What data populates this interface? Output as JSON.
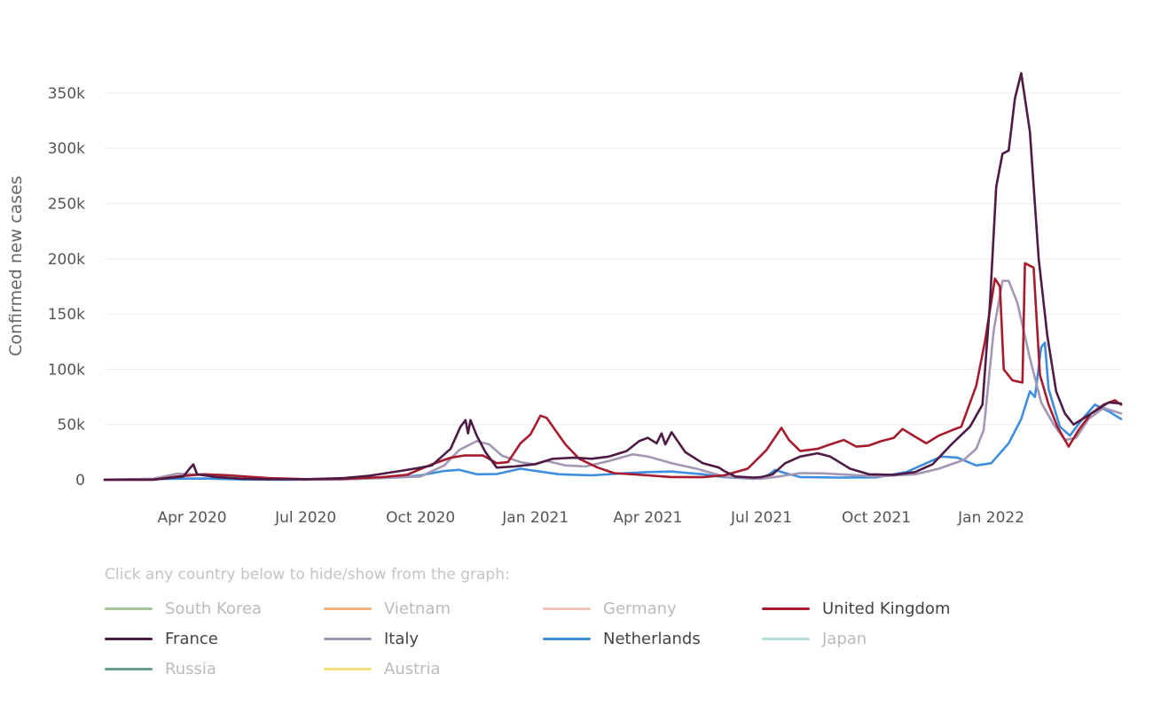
{
  "chart_data": {
    "type": "line",
    "ylabel": "Confirmed new cases",
    "xlabel": "",
    "ylim": [
      0,
      370000
    ],
    "xlim": [
      "2020-01-22",
      "2022-04-15"
    ],
    "y_ticks": [
      {
        "value": 0,
        "label": "0"
      },
      {
        "value": 50000,
        "label": "50k"
      },
      {
        "value": 100000,
        "label": "100k"
      },
      {
        "value": 150000,
        "label": "150k"
      },
      {
        "value": 200000,
        "label": "200k"
      },
      {
        "value": 250000,
        "label": "250k"
      },
      {
        "value": 300000,
        "label": "300k"
      },
      {
        "value": 350000,
        "label": "350k"
      }
    ],
    "x_ticks": [
      {
        "value": "2020-04-01",
        "label": "Apr 2020"
      },
      {
        "value": "2020-07-01",
        "label": "Jul 2020"
      },
      {
        "value": "2020-10-01",
        "label": "Oct 2020"
      },
      {
        "value": "2021-01-01",
        "label": "Jan 2021"
      },
      {
        "value": "2021-04-01",
        "label": "Apr 2021"
      },
      {
        "value": "2021-07-01",
        "label": "Jul 2021"
      },
      {
        "value": "2021-10-01",
        "label": "Oct 2021"
      },
      {
        "value": "2022-01-01",
        "label": "Jan 2022"
      }
    ],
    "grid": true,
    "legend_position": "bottom",
    "series": [
      {
        "name": "South Korea",
        "color": "#a7c49a",
        "visible": false,
        "points": []
      },
      {
        "name": "Vietnam",
        "color": "#f8b27a",
        "visible": false,
        "points": []
      },
      {
        "name": "Germany",
        "color": "#f0c6b6",
        "visible": false,
        "points": []
      },
      {
        "name": "United Kingdom",
        "color": "#a61c2e",
        "visible": true,
        "points": [
          [
            "2020-01-22",
            0
          ],
          [
            "2020-03-01",
            200
          ],
          [
            "2020-03-20",
            3000
          ],
          [
            "2020-04-10",
            5000
          ],
          [
            "2020-05-01",
            4000
          ],
          [
            "2020-06-01",
            1500
          ],
          [
            "2020-07-01",
            600
          ],
          [
            "2020-08-01",
            800
          ],
          [
            "2020-09-01",
            2500
          ],
          [
            "2020-09-20",
            4500
          ],
          [
            "2020-10-10",
            14000
          ],
          [
            "2020-10-25",
            20000
          ],
          [
            "2020-11-05",
            22000
          ],
          [
            "2020-11-20",
            22000
          ],
          [
            "2020-12-01",
            15000
          ],
          [
            "2020-12-10",
            16000
          ],
          [
            "2020-12-20",
            33000
          ],
          [
            "2020-12-28",
            41000
          ],
          [
            "2021-01-05",
            58000
          ],
          [
            "2021-01-10",
            56000
          ],
          [
            "2021-01-25",
            32000
          ],
          [
            "2021-02-05",
            19000
          ],
          [
            "2021-02-20",
            11000
          ],
          [
            "2021-03-05",
            6000
          ],
          [
            "2021-03-20",
            5000
          ],
          [
            "2021-04-01",
            4000
          ],
          [
            "2021-04-20",
            2500
          ],
          [
            "2021-05-15",
            2300
          ],
          [
            "2021-06-01",
            4000
          ],
          [
            "2021-06-20",
            10000
          ],
          [
            "2021-07-05",
            27000
          ],
          [
            "2021-07-17",
            47000
          ],
          [
            "2021-07-23",
            36000
          ],
          [
            "2021-08-01",
            26000
          ],
          [
            "2021-08-15",
            28000
          ],
          [
            "2021-08-25",
            32000
          ],
          [
            "2021-09-05",
            36000
          ],
          [
            "2021-09-15",
            30000
          ],
          [
            "2021-09-25",
            31000
          ],
          [
            "2021-10-05",
            35000
          ],
          [
            "2021-10-15",
            38000
          ],
          [
            "2021-10-22",
            46000
          ],
          [
            "2021-11-01",
            39000
          ],
          [
            "2021-11-10",
            33000
          ],
          [
            "2021-11-20",
            40000
          ],
          [
            "2021-12-01",
            45000
          ],
          [
            "2021-12-08",
            48000
          ],
          [
            "2021-12-20",
            85000
          ],
          [
            "2021-12-27",
            125000
          ],
          [
            "2022-01-04",
            182000
          ],
          [
            "2022-01-08",
            175000
          ],
          [
            "2022-01-11",
            100000
          ],
          [
            "2022-01-18",
            90000
          ],
          [
            "2022-01-26",
            88000
          ],
          [
            "2022-01-28",
            196000
          ],
          [
            "2022-02-04",
            192000
          ],
          [
            "2022-02-09",
            95000
          ],
          [
            "2022-02-16",
            68000
          ],
          [
            "2022-02-23",
            48000
          ],
          [
            "2022-03-04",
            30000
          ],
          [
            "2022-03-12",
            45000
          ],
          [
            "2022-03-22",
            60000
          ],
          [
            "2022-04-01",
            68000
          ],
          [
            "2022-04-10",
            72000
          ],
          [
            "2022-04-15",
            68000
          ]
        ]
      },
      {
        "name": "France",
        "color": "#4d1b44",
        "visible": true,
        "points": [
          [
            "2020-01-22",
            0
          ],
          [
            "2020-03-01",
            100
          ],
          [
            "2020-03-25",
            3000
          ],
          [
            "2020-03-30",
            10000
          ],
          [
            "2020-04-02",
            14000
          ],
          [
            "2020-04-05",
            5000
          ],
          [
            "2020-04-20",
            2500
          ],
          [
            "2020-05-10",
            1000
          ],
          [
            "2020-06-01",
            500
          ],
          [
            "2020-07-01",
            500
          ],
          [
            "2020-08-01",
            1500
          ],
          [
            "2020-08-20",
            3500
          ],
          [
            "2020-09-15",
            8000
          ],
          [
            "2020-10-01",
            11000
          ],
          [
            "2020-10-10",
            13000
          ],
          [
            "2020-10-25",
            28000
          ],
          [
            "2020-11-02",
            48000
          ],
          [
            "2020-11-06",
            54000
          ],
          [
            "2020-11-08",
            42000
          ],
          [
            "2020-11-10",
            54000
          ],
          [
            "2020-11-15",
            40000
          ],
          [
            "2020-11-22",
            25000
          ],
          [
            "2020-12-01",
            11000
          ],
          [
            "2020-12-15",
            12000
          ],
          [
            "2020-12-31",
            14000
          ],
          [
            "2021-01-15",
            19000
          ],
          [
            "2021-02-01",
            20000
          ],
          [
            "2021-02-15",
            19000
          ],
          [
            "2021-03-01",
            21000
          ],
          [
            "2021-03-15",
            26000
          ],
          [
            "2021-03-25",
            35000
          ],
          [
            "2021-04-01",
            38000
          ],
          [
            "2021-04-08",
            33000
          ],
          [
            "2021-04-12",
            42000
          ],
          [
            "2021-04-15",
            32000
          ],
          [
            "2021-04-20",
            43000
          ],
          [
            "2021-05-01",
            25000
          ],
          [
            "2021-05-15",
            15000
          ],
          [
            "2021-05-28",
            11000
          ],
          [
            "2021-06-01",
            8000
          ],
          [
            "2021-06-10",
            3000
          ],
          [
            "2021-06-25",
            2000
          ],
          [
            "2021-07-01",
            2500
          ],
          [
            "2021-07-10",
            5000
          ],
          [
            "2021-07-20",
            15000
          ],
          [
            "2021-08-01",
            21000
          ],
          [
            "2021-08-15",
            24000
          ],
          [
            "2021-08-25",
            21000
          ],
          [
            "2021-09-10",
            10000
          ],
          [
            "2021-09-25",
            5000
          ],
          [
            "2021-10-15",
            4500
          ],
          [
            "2021-11-01",
            7000
          ],
          [
            "2021-11-15",
            14000
          ],
          [
            "2021-12-01",
            33000
          ],
          [
            "2021-12-15",
            48000
          ],
          [
            "2021-12-25",
            68000
          ],
          [
            "2021-12-31",
            160000
          ],
          [
            "2022-01-05",
            265000
          ],
          [
            "2022-01-10",
            295000
          ],
          [
            "2022-01-15",
            298000
          ],
          [
            "2022-01-20",
            345000
          ],
          [
            "2022-01-25",
            368000
          ],
          [
            "2022-02-01",
            315000
          ],
          [
            "2022-02-08",
            200000
          ],
          [
            "2022-02-15",
            130000
          ],
          [
            "2022-02-22",
            80000
          ],
          [
            "2022-03-01",
            60000
          ],
          [
            "2022-03-08",
            50000
          ],
          [
            "2022-03-15",
            55000
          ],
          [
            "2022-03-25",
            62000
          ],
          [
            "2022-04-05",
            70000
          ],
          [
            "2022-04-15",
            69000
          ]
        ]
      },
      {
        "name": "Italy",
        "color": "#a497b4",
        "visible": true,
        "points": [
          [
            "2020-01-22",
            0
          ],
          [
            "2020-03-01",
            1000
          ],
          [
            "2020-03-20",
            5500
          ],
          [
            "2020-04-10",
            4500
          ],
          [
            "2020-05-01",
            2000
          ],
          [
            "2020-06-01",
            500
          ],
          [
            "2020-07-01",
            200
          ],
          [
            "2020-08-01",
            400
          ],
          [
            "2020-09-01",
            1500
          ],
          [
            "2020-10-01",
            3000
          ],
          [
            "2020-10-20",
            13000
          ],
          [
            "2020-11-01",
            27000
          ],
          [
            "2020-11-15",
            35000
          ],
          [
            "2020-11-25",
            32000
          ],
          [
            "2020-12-05",
            22000
          ],
          [
            "2020-12-20",
            16000
          ],
          [
            "2021-01-01",
            14000
          ],
          [
            "2021-01-10",
            17000
          ],
          [
            "2021-01-25",
            13000
          ],
          [
            "2021-02-10",
            12000
          ],
          [
            "2021-03-01",
            17000
          ],
          [
            "2021-03-20",
            23000
          ],
          [
            "2021-04-01",
            21000
          ],
          [
            "2021-04-20",
            15000
          ],
          [
            "2021-05-10",
            10000
          ],
          [
            "2021-06-01",
            3000
          ],
          [
            "2021-06-20",
            1200
          ],
          [
            "2021-07-01",
            1000
          ],
          [
            "2021-07-15",
            3000
          ],
          [
            "2021-08-01",
            6000
          ],
          [
            "2021-08-20",
            5800
          ],
          [
            "2021-09-10",
            4500
          ],
          [
            "2021-10-01",
            3000
          ],
          [
            "2021-11-01",
            5000
          ],
          [
            "2021-11-20",
            10000
          ],
          [
            "2021-12-10",
            18000
          ],
          [
            "2021-12-20",
            28000
          ],
          [
            "2021-12-26",
            45000
          ],
          [
            "2022-01-03",
            135000
          ],
          [
            "2022-01-10",
            180000
          ],
          [
            "2022-01-15",
            180000
          ],
          [
            "2022-01-22",
            160000
          ],
          [
            "2022-02-01",
            110000
          ],
          [
            "2022-02-10",
            70000
          ],
          [
            "2022-02-20",
            50000
          ],
          [
            "2022-03-01",
            36000
          ],
          [
            "2022-03-10",
            38000
          ],
          [
            "2022-03-20",
            55000
          ],
          [
            "2022-04-01",
            65000
          ],
          [
            "2022-04-15",
            60000
          ]
        ]
      },
      {
        "name": "Netherlands",
        "color": "#3d8ede",
        "visible": true,
        "points": [
          [
            "2020-01-22",
            0
          ],
          [
            "2020-03-20",
            1000
          ],
          [
            "2020-04-10",
            1100
          ],
          [
            "2020-05-10",
            300
          ],
          [
            "2020-06-15",
            100
          ],
          [
            "2020-08-01",
            400
          ],
          [
            "2020-09-15",
            2500
          ],
          [
            "2020-10-01",
            4000
          ],
          [
            "2020-10-20",
            8000
          ],
          [
            "2020-11-01",
            9000
          ],
          [
            "2020-11-15",
            5000
          ],
          [
            "2020-12-01",
            5200
          ],
          [
            "2020-12-20",
            10000
          ],
          [
            "2021-01-01",
            8000
          ],
          [
            "2021-01-20",
            5000
          ],
          [
            "2021-02-15",
            4000
          ],
          [
            "2021-03-15",
            6000
          ],
          [
            "2021-04-01",
            7000
          ],
          [
            "2021-04-20",
            7500
          ],
          [
            "2021-05-15",
            5000
          ],
          [
            "2021-06-01",
            2500
          ],
          [
            "2021-06-25",
            800
          ],
          [
            "2021-07-05",
            3000
          ],
          [
            "2021-07-12",
            9000
          ],
          [
            "2021-07-20",
            6000
          ],
          [
            "2021-08-01",
            2500
          ],
          [
            "2021-09-01",
            2000
          ],
          [
            "2021-10-01",
            2200
          ],
          [
            "2021-10-25",
            7000
          ],
          [
            "2021-11-10",
            15000
          ],
          [
            "2021-11-22",
            21000
          ],
          [
            "2021-12-05",
            20000
          ],
          [
            "2021-12-20",
            13000
          ],
          [
            "2022-01-01",
            15000
          ],
          [
            "2022-01-15",
            33000
          ],
          [
            "2022-01-25",
            55000
          ],
          [
            "2022-02-01",
            80000
          ],
          [
            "2022-02-05",
            75000
          ],
          [
            "2022-02-10",
            120000
          ],
          [
            "2022-02-13",
            124000
          ],
          [
            "2022-02-16",
            82000
          ],
          [
            "2022-02-25",
            48000
          ],
          [
            "2022-03-05",
            40000
          ],
          [
            "2022-03-15",
            55000
          ],
          [
            "2022-03-25",
            68000
          ],
          [
            "2022-04-05",
            62000
          ],
          [
            "2022-04-15",
            55000
          ]
        ]
      },
      {
        "name": "Japan",
        "color": "#b3dddb",
        "visible": false,
        "points": []
      },
      {
        "name": "Russia",
        "color": "#6a9e88",
        "visible": false,
        "points": []
      },
      {
        "name": "Austria",
        "color": "#f4e27a",
        "visible": false,
        "points": []
      }
    ]
  },
  "legend": {
    "hint": "Click any country below to hide/show from the graph:"
  }
}
